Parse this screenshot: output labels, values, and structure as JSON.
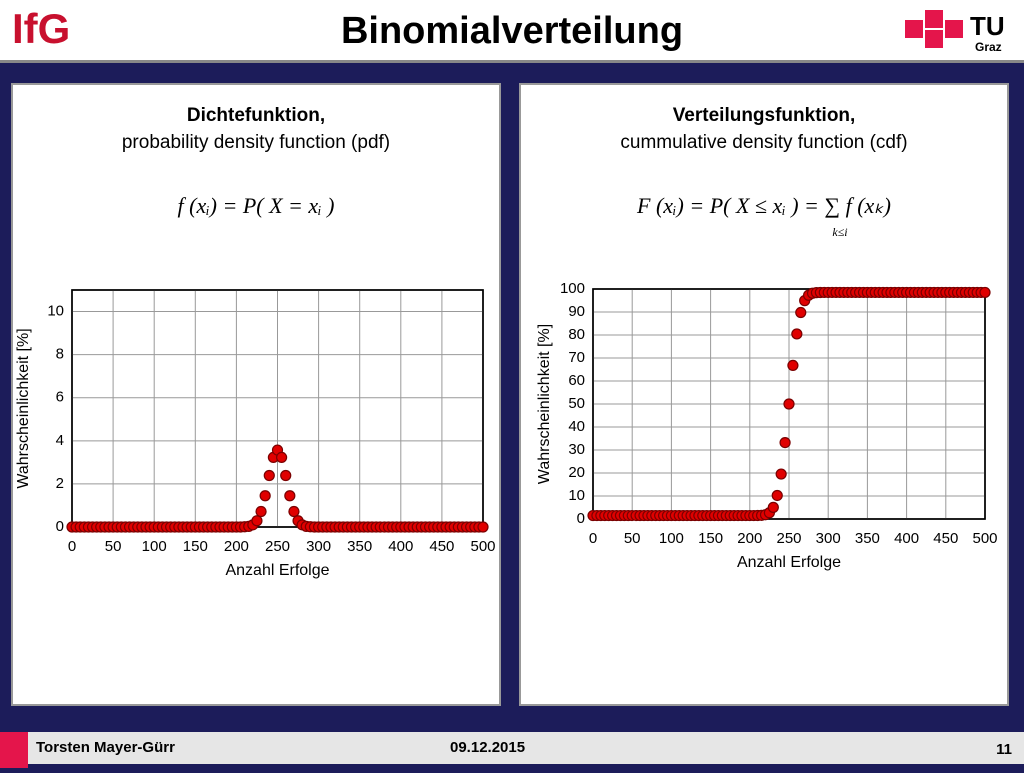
{
  "header": {
    "title": "Binomialverteilung",
    "logo_left": "IfG",
    "logo_right": "TU",
    "logo_right_sub": "Graz"
  },
  "footer": {
    "author": "Torsten Mayer-Gürr",
    "date": "09.12.2015",
    "page": "11"
  },
  "chart_data": [
    {
      "type": "scatter",
      "title": "Dichtefunktion,",
      "subtitle": "probability density function (pdf)",
      "formula": "f (xᵢ) = P( X = xᵢ )",
      "x_label": "Anzahl Erfolge",
      "y_label": "Wahrscheinlichkeit [%]",
      "xlim": [
        0,
        500
      ],
      "xticks": [
        0,
        50,
        100,
        150,
        200,
        250,
        300,
        350,
        400,
        450,
        500
      ],
      "ylim": [
        0,
        11
      ],
      "yticks": [
        0,
        2,
        4,
        6,
        8,
        10
      ],
      "grid": true,
      "series": [
        {
          "color": "#e00000",
          "x": [
            0,
            5,
            10,
            15,
            20,
            25,
            30,
            35,
            40,
            45,
            50,
            55,
            60,
            65,
            70,
            75,
            80,
            85,
            90,
            95,
            100,
            105,
            110,
            115,
            120,
            125,
            130,
            135,
            140,
            145,
            150,
            155,
            160,
            165,
            170,
            175,
            180,
            185,
            190,
            195,
            200,
            205,
            210,
            215,
            220,
            225,
            230,
            235,
            240,
            245,
            250,
            255,
            260,
            265,
            270,
            275,
            280,
            285,
            290,
            295,
            300,
            305,
            310,
            315,
            320,
            325,
            330,
            335,
            340,
            345,
            350,
            355,
            360,
            365,
            370,
            375,
            380,
            385,
            390,
            395,
            400,
            405,
            410,
            415,
            420,
            425,
            430,
            435,
            440,
            445,
            450,
            455,
            460,
            465,
            470,
            475,
            480,
            485,
            490,
            495,
            500
          ],
          "values": [
            0,
            0,
            0,
            0,
            0,
            0,
            0,
            0,
            0,
            0,
            0,
            0,
            0,
            0,
            0,
            0,
            0,
            0,
            0,
            0,
            0,
            0,
            0,
            0,
            0,
            0,
            0,
            0,
            0,
            0,
            0,
            0,
            0,
            0,
            0,
            0,
            0,
            0,
            0,
            0,
            0,
            0,
            0.01,
            0.03,
            0.1,
            0.29,
            0.72,
            1.45,
            2.39,
            3.23,
            3.57,
            3.23,
            2.39,
            1.45,
            0.72,
            0.29,
            0.1,
            0.03,
            0.01,
            0,
            0,
            0,
            0,
            0,
            0,
            0,
            0,
            0,
            0,
            0,
            0,
            0,
            0,
            0,
            0,
            0,
            0,
            0,
            0,
            0,
            0,
            0,
            0,
            0,
            0,
            0,
            0,
            0,
            0,
            0,
            0,
            0,
            0,
            0,
            0,
            0,
            0,
            0,
            0,
            0,
            0
          ]
        }
      ]
    },
    {
      "type": "scatter",
      "title": "Verteilungsfunktion,",
      "subtitle": "cummulative density function (cdf)",
      "formula": "F (xᵢ) = P( X ≤ xᵢ ) = ∑ f (xₖ)",
      "formula_sub": "k≤i",
      "x_label": "Anzahl Erfolge",
      "y_label": "Wahrscheinlichkeit [%]",
      "xlim": [
        0,
        500
      ],
      "xticks": [
        0,
        50,
        100,
        150,
        200,
        250,
        300,
        350,
        400,
        450,
        500
      ],
      "ylim": [
        0,
        100
      ],
      "yticks": [
        0,
        10,
        20,
        30,
        40,
        50,
        60,
        70,
        80,
        90,
        100
      ],
      "grid": true,
      "series": [
        {
          "color": "#e00000",
          "x": [
            0,
            5,
            10,
            15,
            20,
            25,
            30,
            35,
            40,
            45,
            50,
            55,
            60,
            65,
            70,
            75,
            80,
            85,
            90,
            95,
            100,
            105,
            110,
            115,
            120,
            125,
            130,
            135,
            140,
            145,
            150,
            155,
            160,
            165,
            170,
            175,
            180,
            185,
            190,
            195,
            200,
            205,
            210,
            215,
            220,
            225,
            230,
            235,
            240,
            245,
            250,
            255,
            260,
            265,
            270,
            275,
            280,
            285,
            290,
            295,
            300,
            305,
            310,
            315,
            320,
            325,
            330,
            335,
            340,
            345,
            350,
            355,
            360,
            365,
            370,
            375,
            380,
            385,
            390,
            395,
            400,
            405,
            410,
            415,
            420,
            425,
            430,
            435,
            440,
            445,
            450,
            455,
            460,
            465,
            470,
            475,
            480,
            485,
            490,
            495,
            500
          ],
          "values": [
            1.5,
            1.5,
            1.5,
            1.5,
            1.5,
            1.5,
            1.5,
            1.5,
            1.5,
            1.5,
            1.5,
            1.5,
            1.5,
            1.5,
            1.5,
            1.5,
            1.5,
            1.5,
            1.5,
            1.5,
            1.5,
            1.5,
            1.5,
            1.5,
            1.5,
            1.5,
            1.5,
            1.5,
            1.5,
            1.5,
            1.5,
            1.5,
            1.5,
            1.5,
            1.5,
            1.5,
            1.5,
            1.5,
            1.5,
            1.5,
            1.5,
            1.5,
            1.52,
            1.59,
            1.86,
            2.71,
            5.06,
            10.23,
            19.54,
            33.22,
            50,
            66.78,
            80.46,
            89.77,
            94.94,
            97.29,
            98.14,
            98.41,
            98.48,
            98.5,
            98.5,
            98.5,
            98.5,
            98.5,
            98.5,
            98.5,
            98.5,
            98.5,
            98.5,
            98.5,
            98.5,
            98.5,
            98.5,
            98.5,
            98.5,
            98.5,
            98.5,
            98.5,
            98.5,
            98.5,
            98.5,
            98.5,
            98.5,
            98.5,
            98.5,
            98.5,
            98.5,
            98.5,
            98.5,
            98.5,
            98.5,
            98.5,
            98.5,
            98.5,
            98.5,
            98.5,
            98.5,
            98.5,
            98.5,
            98.5,
            98.5
          ]
        }
      ]
    }
  ]
}
